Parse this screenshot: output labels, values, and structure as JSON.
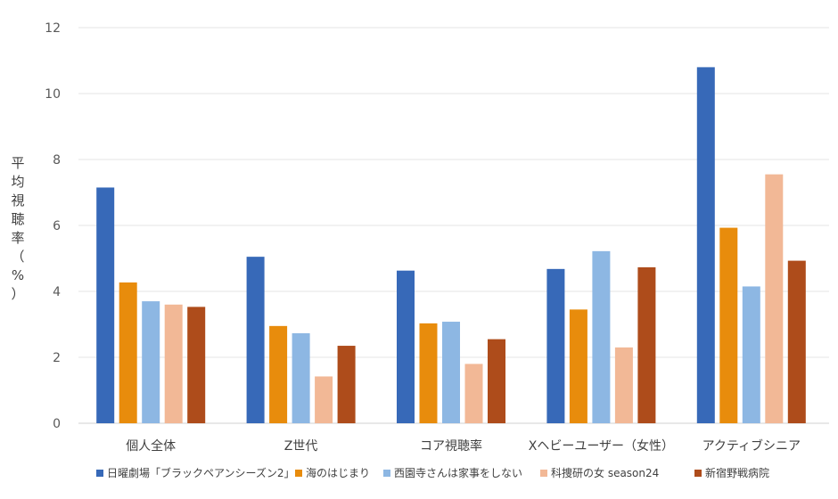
{
  "chart_data": {
    "type": "bar",
    "ylabel": "平均視聴率（%）",
    "ylim": [
      0,
      12
    ],
    "yticks": [
      0,
      2,
      4,
      6,
      8,
      10,
      12
    ],
    "grid": true,
    "legend_position": "bottom",
    "categories": [
      "個人全体",
      "Z世代",
      "コア視聴率",
      "Xヘビーユーザー（女性）",
      "アクティブシニア"
    ],
    "series": [
      {
        "name": "日曜劇場「ブラックペアンシーズン2」",
        "color": "#3769b8",
        "values": [
          7.15,
          5.05,
          4.63,
          4.68,
          10.8
        ]
      },
      {
        "name": "海のはじまり",
        "color": "#e88c0c",
        "values": [
          4.27,
          2.95,
          3.03,
          3.45,
          5.93
        ]
      },
      {
        "name": "西園寺さんは家事をしない",
        "color": "#8db7e3",
        "values": [
          3.7,
          2.73,
          3.08,
          5.22,
          4.15
        ]
      },
      {
        "name": "科捜研の女 season24",
        "color": "#f2b896",
        "values": [
          3.6,
          1.42,
          1.8,
          2.3,
          7.55
        ]
      },
      {
        "name": "新宿野戦病院",
        "color": "#ae4c1b",
        "values": [
          3.53,
          2.35,
          2.55,
          4.73,
          4.93
        ]
      }
    ]
  }
}
